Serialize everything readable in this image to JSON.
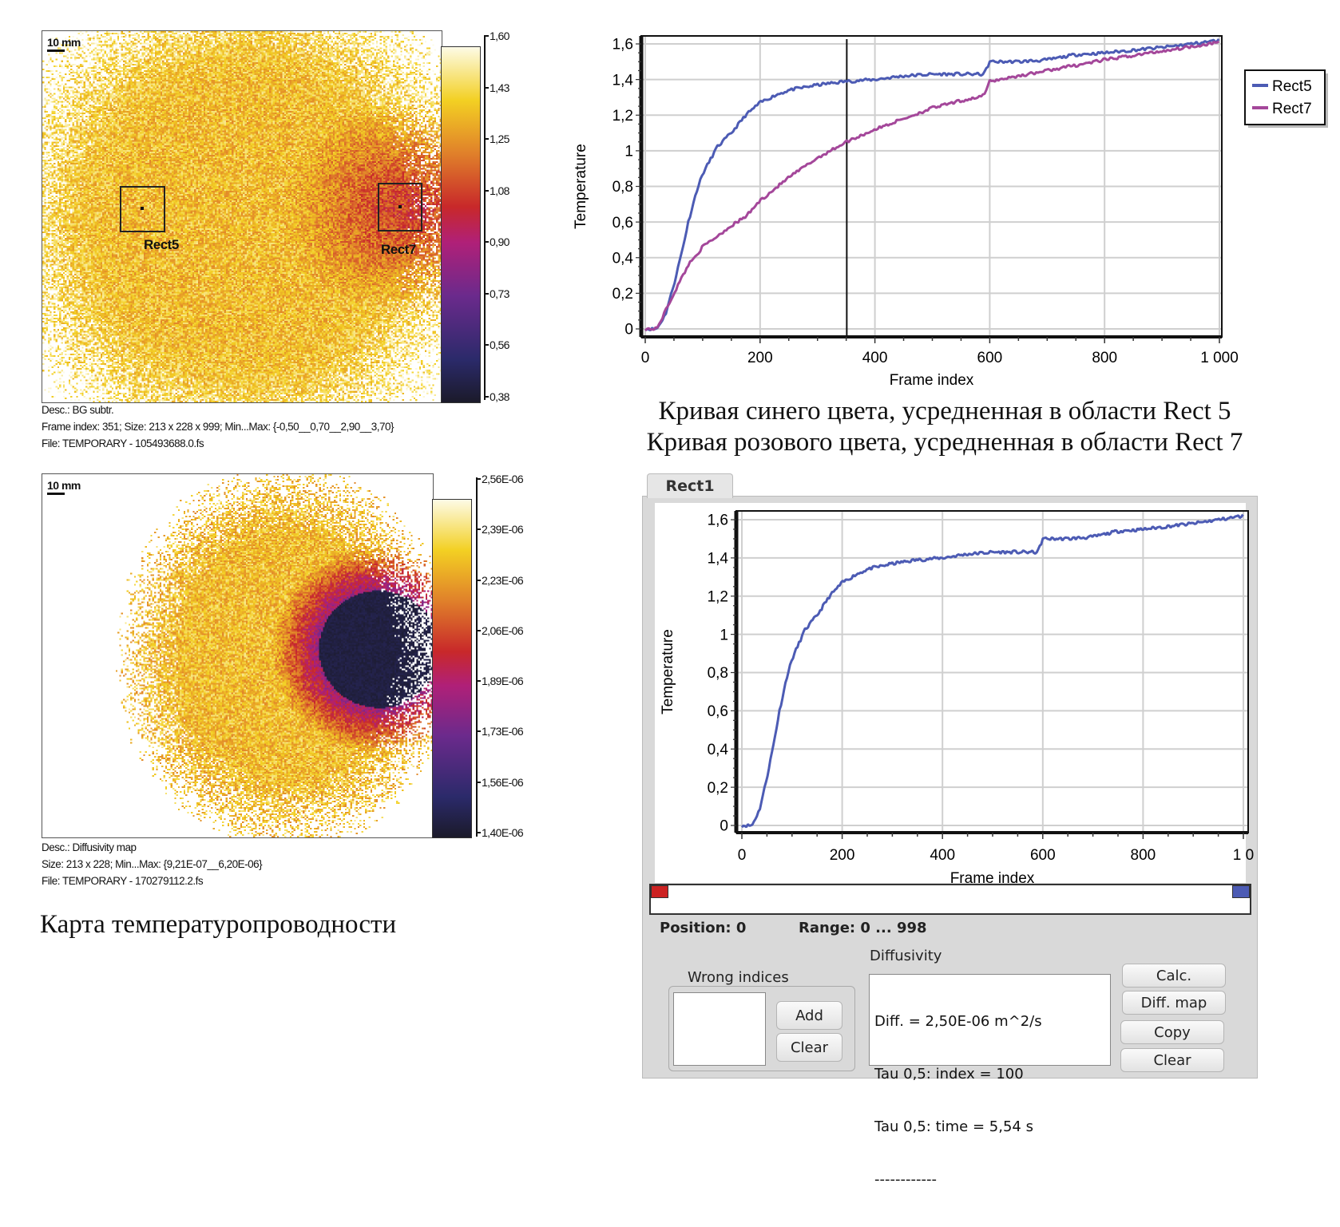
{
  "map_temperature": {
    "scale_label": "10 mm",
    "roi_labels": [
      "Rect5",
      "Rect7"
    ],
    "colorbar_ticks": [
      "1,60",
      "1,43",
      "1,25",
      "1,08",
      "0,90",
      "0,73",
      "0,56",
      "0,38"
    ],
    "desc": "Desc.:  BG subtr.",
    "frame_info": "Frame index:  351; Size:  213 x 228 x 999; Min...Max:  {-0,50__0,70__2,90__3,70}",
    "file": "File: TEMPORARY - 105493688.0.fs"
  },
  "map_diffusivity": {
    "scale_label": "10 mm",
    "colorbar_ticks": [
      "2,56E-06",
      "2,39E-06",
      "2,23E-06",
      "2,06E-06",
      "1,89E-06",
      "1,73E-06",
      "1,56E-06",
      "1,40E-06"
    ],
    "desc": "Desc.:  Diffusivity map",
    "size_info": "Size:  213 x 228; Min...Max:  {9,21E-07__6,20E-06}",
    "file": "File: TEMPORARY - 170279112.2.fs",
    "caption": "Карта температуропроводности"
  },
  "colormap": [
    "#1b1a2a",
    "#2b2a6a",
    "#6b2a8c",
    "#b02078",
    "#c8282a",
    "#e0802a",
    "#f3d023",
    "#fdfbe6"
  ],
  "captions": {
    "line1": "Кривая синего цвета, усредненная в области Rect 5",
    "line2": "Кривая розового цвета, усредненная в области Rect 7"
  },
  "chart_data": [
    {
      "type": "line",
      "xlabel": "Frame index",
      "ylabel": "Temperature",
      "xlim": [
        0,
        1000
      ],
      "ylim": [
        0,
        1.6
      ],
      "xticks": [
        "0",
        "200",
        "400",
        "600",
        "800",
        "1 000"
      ],
      "xtick_values": [
        0,
        200,
        400,
        600,
        800,
        1000
      ],
      "yticks": [
        "0",
        "0,2",
        "0,4",
        "0,6",
        "0,8",
        "1",
        "1,2",
        "1,4",
        "1,6"
      ],
      "ytick_values": [
        0,
        0.2,
        0.4,
        0.6,
        0.8,
        1.0,
        1.2,
        1.4,
        1.6
      ],
      "grid": true,
      "legend": "right",
      "cursor_x": 351,
      "series": [
        {
          "name": "Rect5",
          "color": "#4c5bb4",
          "x": [
            0,
            20,
            35,
            50,
            65,
            75,
            90,
            100,
            125,
            150,
            175,
            200,
            225,
            250,
            300,
            350,
            400,
            450,
            500,
            550,
            590,
            600,
            650,
            700,
            750,
            800,
            900,
            1000
          ],
          "y": [
            0,
            0,
            0.08,
            0.25,
            0.45,
            0.6,
            0.78,
            0.87,
            1.02,
            1.1,
            1.2,
            1.27,
            1.31,
            1.34,
            1.37,
            1.39,
            1.4,
            1.42,
            1.43,
            1.43,
            1.43,
            1.5,
            1.5,
            1.51,
            1.54,
            1.55,
            1.58,
            1.62
          ]
        },
        {
          "name": "Rect7",
          "color": "#a4479a",
          "x": [
            0,
            20,
            35,
            50,
            75,
            100,
            125,
            150,
            175,
            200,
            250,
            300,
            350,
            400,
            450,
            500,
            550,
            590,
            600,
            650,
            700,
            750,
            800,
            900,
            1000
          ],
          "y": [
            0,
            0,
            0.1,
            0.2,
            0.36,
            0.46,
            0.52,
            0.58,
            0.63,
            0.72,
            0.85,
            0.96,
            1.05,
            1.12,
            1.18,
            1.24,
            1.28,
            1.31,
            1.39,
            1.42,
            1.45,
            1.48,
            1.51,
            1.56,
            1.61
          ]
        }
      ]
    },
    {
      "type": "line",
      "tab": "Rect1",
      "xlabel": "Frame index",
      "ylabel": "Temperature",
      "xlim": [
        0,
        1000
      ],
      "ylim": [
        0,
        1.6
      ],
      "xticks": [
        "0",
        "200",
        "400",
        "600",
        "800",
        "1 0"
      ],
      "xtick_values": [
        0,
        200,
        400,
        600,
        800,
        1000
      ],
      "yticks": [
        "0",
        "0,2",
        "0,4",
        "0,6",
        "0,8",
        "1",
        "1,2",
        "1,4",
        "1,6"
      ],
      "ytick_values": [
        0,
        0.2,
        0.4,
        0.6,
        0.8,
        1.0,
        1.2,
        1.4,
        1.6
      ],
      "grid": true,
      "series": [
        {
          "color": "#4c5bb4",
          "x": [
            0,
            20,
            35,
            50,
            65,
            75,
            90,
            100,
            125,
            150,
            175,
            200,
            225,
            250,
            300,
            350,
            400,
            450,
            500,
            550,
            590,
            600,
            650,
            700,
            750,
            800,
            900,
            1000
          ],
          "y": [
            0,
            0,
            0.08,
            0.25,
            0.45,
            0.6,
            0.78,
            0.87,
            1.02,
            1.1,
            1.2,
            1.27,
            1.31,
            1.34,
            1.37,
            1.39,
            1.4,
            1.42,
            1.43,
            1.43,
            1.43,
            1.5,
            1.5,
            1.51,
            1.54,
            1.55,
            1.58,
            1.62
          ]
        }
      ]
    }
  ],
  "panel": {
    "position": "Position: 0",
    "range": "Range: 0 ... 998",
    "slider_start_color": "#cc2222",
    "slider_end_color": "#4c5bb4",
    "diffusivity_label": "Diffusivity",
    "wrong_indices_label": "Wrong indices",
    "add_label": "Add",
    "clear_indices_label": "Clear",
    "results": [
      "Diff. = 2,50E-06 m^2/s",
      "Tau 0,5: index = 100",
      "Tau 0,5: time = 5,54 s",
      "------------"
    ],
    "calc_label": "Calc.",
    "diff_map_label": "Diff. map",
    "copy_label": "Copy",
    "clear_label": "Clear"
  }
}
